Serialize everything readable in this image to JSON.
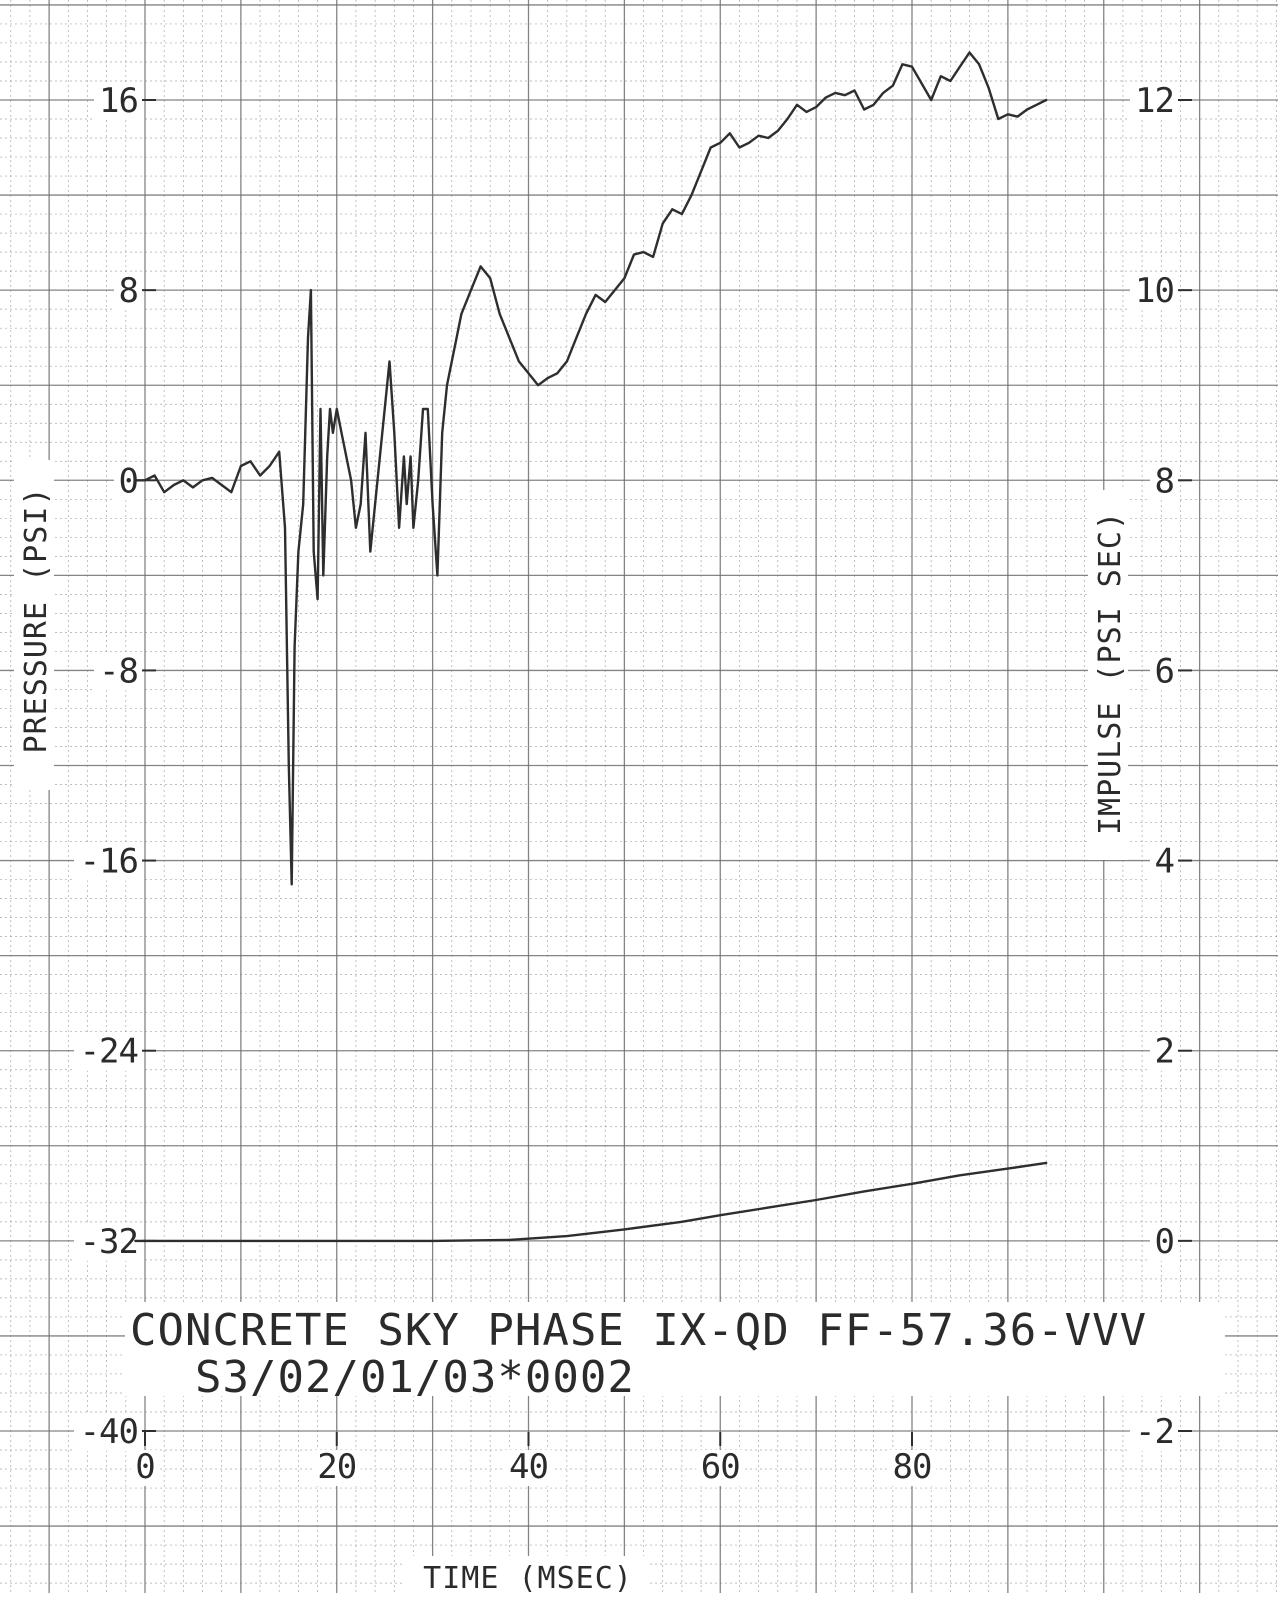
{
  "chart_data": {
    "type": "line",
    "title": "",
    "caption_lines": [
      "CONCRETE SKY PHASE IX-QD FF-57.36-VVV",
      "S3/02/01/03*0002"
    ],
    "xlabel": "TIME (MSEC)",
    "ylabel_left": "PRESSURE (PSI)",
    "ylabel_right": "IMPULSE (PSI SEC)",
    "xlim": [
      -1,
      96
    ],
    "ylim_left": [
      -40,
      16
    ],
    "ylim_right": [
      -2,
      12
    ],
    "x_ticks": [
      "0",
      "20",
      "40",
      "60",
      "80"
    ],
    "y_left_ticks": [
      "16",
      "8",
      "0",
      "-8",
      "-16",
      "-24",
      "-32",
      "-40"
    ],
    "y_right_ticks": [
      "12",
      "10",
      "8",
      "6",
      "4",
      "2",
      "0",
      "-2"
    ],
    "grid": true,
    "legend": "none",
    "line_color": "#2e2e2e",
    "grid_color": "#6f6f6f",
    "series": [
      {
        "axis": "left",
        "x": [
          -1,
          0,
          1,
          2,
          3,
          4,
          5,
          6,
          7,
          8,
          9,
          10,
          11,
          12,
          13,
          14,
          14.6,
          15,
          15.3,
          15.6,
          16,
          16.5,
          17,
          17.3,
          17.6,
          18,
          18.3,
          18.6,
          19,
          19.3,
          19.6,
          20,
          20.5,
          21,
          21.5,
          22,
          22.5,
          23,
          23.5,
          24,
          24.5,
          25,
          25.5,
          26,
          26.5,
          27,
          27.3,
          27.7,
          28,
          28.5,
          29,
          29.5,
          30,
          30.5,
          31,
          31.5,
          32,
          32.5,
          33,
          34,
          35,
          36,
          37,
          38,
          39,
          40,
          41,
          42,
          43,
          44,
          45,
          46,
          47,
          48,
          49,
          50,
          51,
          52,
          53,
          54,
          55,
          56,
          57,
          58,
          59,
          60,
          61,
          62,
          63,
          64,
          65,
          66,
          67,
          68,
          69,
          70,
          71,
          72,
          73,
          74,
          75,
          76,
          77,
          78,
          79,
          80,
          81,
          82,
          83,
          84,
          85,
          86,
          87,
          88,
          89,
          90,
          91,
          92,
          93,
          94
        ],
        "y": [
          0,
          0,
          0.2,
          -0.5,
          -0.2,
          0,
          -0.3,
          0,
          0.1,
          -0.2,
          -0.5,
          0.6,
          0.8,
          0.2,
          0.6,
          1.2,
          -2,
          -12,
          -17,
          -7,
          -3,
          -1,
          6,
          8,
          -3,
          -5,
          3,
          -4,
          1,
          3,
          2,
          3,
          2,
          1,
          0,
          -2,
          -1,
          2,
          -3,
          -1,
          1,
          3,
          5,
          2,
          -2,
          1,
          -1,
          1,
          -2,
          0,
          3,
          3,
          -1,
          -4,
          2,
          4,
          5,
          6,
          7,
          8,
          9,
          8.5,
          7,
          6,
          5,
          4.5,
          4,
          4.3,
          4.5,
          5,
          6,
          7,
          7.8,
          7.5,
          8,
          8.5,
          9.5,
          9.6,
          9.4,
          10.8,
          11.4,
          11.2,
          12,
          13,
          14,
          14.2,
          14.6,
          14,
          14.2,
          14.5,
          14.4,
          14.7,
          15.2,
          15.8,
          15.5,
          15.7,
          16.1,
          16.3,
          16.2,
          16.4,
          15.6,
          15.8,
          16.3,
          16.6,
          17.5,
          17.4,
          16.7,
          16,
          17,
          16.8,
          17.4,
          18,
          17.5,
          16.5,
          15.2,
          15.4,
          15.3,
          15.6,
          15.8,
          16
        ]
      },
      {
        "axis": "right",
        "x": [
          -1,
          10,
          20,
          30,
          38,
          44,
          50,
          56,
          60,
          65,
          70,
          75,
          80,
          85,
          90,
          94
        ],
        "y": [
          0,
          0,
          0,
          0,
          0.01,
          0.05,
          0.12,
          0.2,
          0.27,
          0.35,
          0.43,
          0.52,
          0.6,
          0.69,
          0.76,
          0.82
        ]
      }
    ]
  }
}
